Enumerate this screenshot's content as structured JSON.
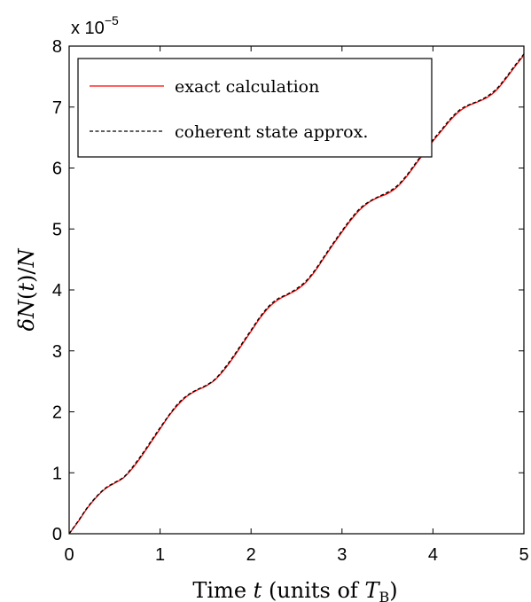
{
  "chart_data": {
    "type": "line",
    "xlabel": "Time t (units of T_B)",
    "ylabel": "δN(t)/N",
    "xlim": [
      0,
      5
    ],
    "ylim": [
      0,
      8
    ],
    "y_scale_note": "x 10^-5",
    "x_ticks": [
      "0",
      "1",
      "2",
      "3",
      "4",
      "5"
    ],
    "y_ticks": [
      "0",
      "1",
      "2",
      "3",
      "4",
      "5",
      "6",
      "7",
      "8"
    ],
    "grid": false,
    "legend_position": "top-left",
    "series": [
      {
        "name": "exact calculation",
        "color": "#ff0000",
        "style": "solid",
        "x": [
          0,
          0.1,
          0.2,
          0.3,
          0.4,
          0.5,
          0.6,
          0.7,
          0.8,
          0.9,
          1.0,
          1.1,
          1.2,
          1.3,
          1.4,
          1.5,
          1.6,
          1.7,
          1.8,
          1.9,
          2.0,
          2.1,
          2.2,
          2.3,
          2.4,
          2.5,
          2.6,
          2.7,
          2.8,
          2.9,
          3.0,
          3.1,
          3.2,
          3.3,
          3.4,
          3.5,
          3.6,
          3.7,
          3.8,
          3.9,
          4.0,
          4.1,
          4.2,
          4.3,
          4.4,
          4.5,
          4.6,
          4.7,
          4.8,
          4.9,
          5.0
        ],
        "values": [
          0,
          0.2,
          0.42,
          0.6,
          0.74,
          0.83,
          0.92,
          1.08,
          1.28,
          1.5,
          1.72,
          1.94,
          2.12,
          2.26,
          2.35,
          2.42,
          2.52,
          2.68,
          2.88,
          3.1,
          3.32,
          3.54,
          3.72,
          3.84,
          3.92,
          4.0,
          4.12,
          4.3,
          4.52,
          4.74,
          4.95,
          5.15,
          5.32,
          5.44,
          5.52,
          5.58,
          5.68,
          5.84,
          6.04,
          6.24,
          6.44,
          6.62,
          6.8,
          6.94,
          7.03,
          7.09,
          7.16,
          7.28,
          7.46,
          7.66,
          7.85
        ]
      },
      {
        "name": "coherent state approx.",
        "color": "#000000",
        "style": "dashed",
        "x": [
          0,
          0.1,
          0.2,
          0.3,
          0.4,
          0.5,
          0.6,
          0.7,
          0.8,
          0.9,
          1.0,
          1.1,
          1.2,
          1.3,
          1.4,
          1.5,
          1.6,
          1.7,
          1.8,
          1.9,
          2.0,
          2.1,
          2.2,
          2.3,
          2.4,
          2.5,
          2.6,
          2.7,
          2.8,
          2.9,
          3.0,
          3.1,
          3.2,
          3.3,
          3.4,
          3.5,
          3.6,
          3.7,
          3.8,
          3.9,
          4.0,
          4.1,
          4.2,
          4.3,
          4.4,
          4.5,
          4.6,
          4.7,
          4.8,
          4.9,
          5.0
        ],
        "values": [
          0,
          0.21,
          0.43,
          0.61,
          0.75,
          0.84,
          0.93,
          1.1,
          1.3,
          1.52,
          1.74,
          1.95,
          2.14,
          2.27,
          2.36,
          2.43,
          2.53,
          2.7,
          2.9,
          3.12,
          3.34,
          3.56,
          3.74,
          3.86,
          3.93,
          4.02,
          4.14,
          4.32,
          4.54,
          4.76,
          4.97,
          5.17,
          5.34,
          5.45,
          5.53,
          5.6,
          5.7,
          5.86,
          6.06,
          6.26,
          6.46,
          6.64,
          6.82,
          6.96,
          7.04,
          7.1,
          7.18,
          7.3,
          7.48,
          7.68,
          7.87
        ]
      }
    ]
  },
  "labels": {
    "multiplier_base": "x 10",
    "multiplier_exp": "−5",
    "xlabel_prefix": "Time ",
    "xlabel_var": "t",
    "xlabel_units": " (units of ",
    "xlabel_T": "T",
    "xlabel_sub": "B",
    "xlabel_close": ")",
    "ylabel_delta": "δ",
    "ylabel_N": "N",
    "ylabel_open": "(",
    "ylabel_t": "t",
    "ylabel_close": ")/",
    "ylabel_N2": "N"
  }
}
